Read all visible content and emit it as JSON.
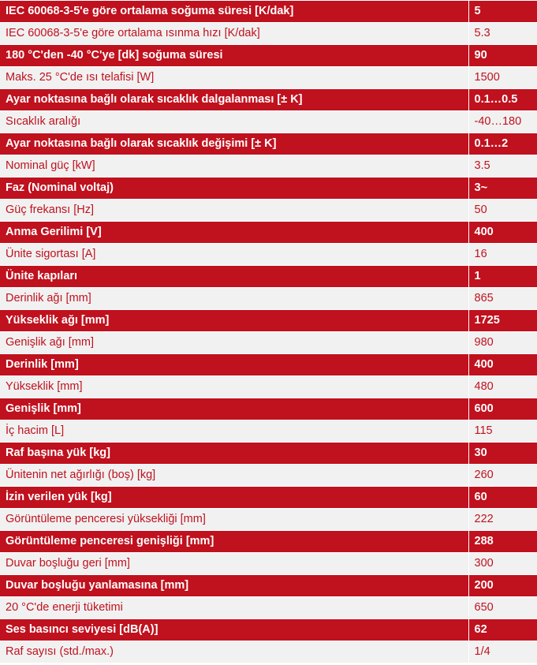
{
  "rows": [
    {
      "label": "IEC 60068-3-5'e göre ortalama soğuma süresi [K/dak]",
      "value": "5"
    },
    {
      "label": "IEC 60068-3-5'e göre ortalama ısınma hızı [K/dak]",
      "value": "5.3"
    },
    {
      "label": "180 °C'den -40 °C'ye [dk] soğuma süresi",
      "value": "90"
    },
    {
      "label": "Maks. 25 °C'de ısı telafisi [W]",
      "value": "1500"
    },
    {
      "label": "Ayar noktasına bağlı olarak sıcaklık dalgalanması [± K]",
      "value": "0.1…0.5"
    },
    {
      "label": "Sıcaklık aralığı",
      "value": "-40…180"
    },
    {
      "label": "Ayar noktasına bağlı olarak sıcaklık değişimi [± K]",
      "value": "0.1…2"
    },
    {
      "label": "Nominal güç [kW]",
      "value": "3.5"
    },
    {
      "label": "Faz (Nominal voltaj)",
      "value": "3~"
    },
    {
      "label": "Güç frekansı [Hz]",
      "value": "50"
    },
    {
      "label": "Anma Gerilimi [V]",
      "value": "400"
    },
    {
      "label": "Ünite sigortası [A]",
      "value": "16"
    },
    {
      "label": "Ünite kapıları",
      "value": "1"
    },
    {
      "label": "Derinlik ağı [mm]",
      "value": "865"
    },
    {
      "label": "Yükseklik ağı [mm]",
      "value": "1725"
    },
    {
      "label": "Genişlik ağı [mm]",
      "value": "980"
    },
    {
      "label": "Derinlik [mm]",
      "value": "400"
    },
    {
      "label": "Yükseklik [mm]",
      "value": "480"
    },
    {
      "label": "Genişlik [mm]",
      "value": "600"
    },
    {
      "label": "İç hacim [L]",
      "value": "115"
    },
    {
      "label": "Raf başına yük [kg]",
      "value": "30"
    },
    {
      "label": "Ünitenin net ağırlığı (boş) [kg]",
      "value": "260"
    },
    {
      "label": "İzin verilen yük [kg]",
      "value": "60"
    },
    {
      "label": "Görüntüleme penceresi yüksekliği [mm]",
      "value": "222"
    },
    {
      "label": "Görüntüleme penceresi genişliği [mm]",
      "value": "288"
    },
    {
      "label": "Duvar boşluğu geri [mm]",
      "value": "300"
    },
    {
      "label": "Duvar boşluğu yanlamasına [mm]",
      "value": "200"
    },
    {
      "label": "20 °C'de enerji tüketimi",
      "value": "650"
    },
    {
      "label": "Ses basıncı seviyesi [dB(A)]",
      "value": "62"
    },
    {
      "label": "Raf sayısı (std./max.)",
      "value": "1/4"
    }
  ],
  "colors": {
    "dark_row_bg": "#c0111e",
    "dark_row_text": "#ffffff",
    "light_row_bg": "#f1f1f1",
    "light_row_text": "#c0111e"
  }
}
